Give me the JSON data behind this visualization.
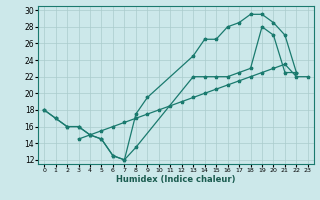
{
  "xlabel": "Humidex (Indice chaleur)",
  "bg_color": "#cce8ea",
  "grid_color": "#aacccc",
  "line_color": "#1a7a6e",
  "xlim": [
    -0.5,
    23.5
  ],
  "ylim": [
    11.5,
    30.5
  ],
  "xticks": [
    0,
    1,
    2,
    3,
    4,
    5,
    6,
    7,
    8,
    9,
    10,
    11,
    12,
    13,
    14,
    15,
    16,
    17,
    18,
    19,
    20,
    21,
    22,
    23
  ],
  "yticks": [
    12,
    14,
    16,
    18,
    20,
    22,
    24,
    26,
    28,
    30
  ],
  "line1_x": [
    0,
    1,
    2,
    3,
    4,
    5,
    6,
    7,
    8,
    9,
    13,
    14,
    15,
    16,
    17,
    18,
    19,
    20,
    21,
    22
  ],
  "line1_y": [
    18,
    17,
    16,
    16,
    15,
    14.5,
    12.5,
    12,
    17.5,
    19.5,
    24.5,
    26.5,
    26.5,
    28,
    28.5,
    29.5,
    29.5,
    28.5,
    27,
    22.5
  ],
  "line2_x": [
    0,
    1,
    2,
    3,
    4,
    5,
    6,
    7,
    8,
    13,
    14,
    15,
    16,
    17,
    18,
    19,
    20,
    21,
    22
  ],
  "line2_y": [
    18,
    17,
    16,
    16,
    15,
    14.5,
    12.5,
    12,
    13.5,
    22,
    22,
    22,
    22,
    22.5,
    23,
    28,
    27,
    22.5,
    22.5
  ],
  "line3_x": [
    3,
    4,
    5,
    6,
    7,
    8,
    9,
    10,
    11,
    12,
    13,
    14,
    15,
    16,
    17,
    18,
    19,
    20,
    21,
    22,
    23
  ],
  "line3_y": [
    14.5,
    15,
    15.5,
    16,
    16.5,
    17,
    17.5,
    18,
    18.5,
    19,
    19.5,
    20,
    20.5,
    21,
    21.5,
    22,
    22.5,
    23,
    23.5,
    22,
    22
  ]
}
